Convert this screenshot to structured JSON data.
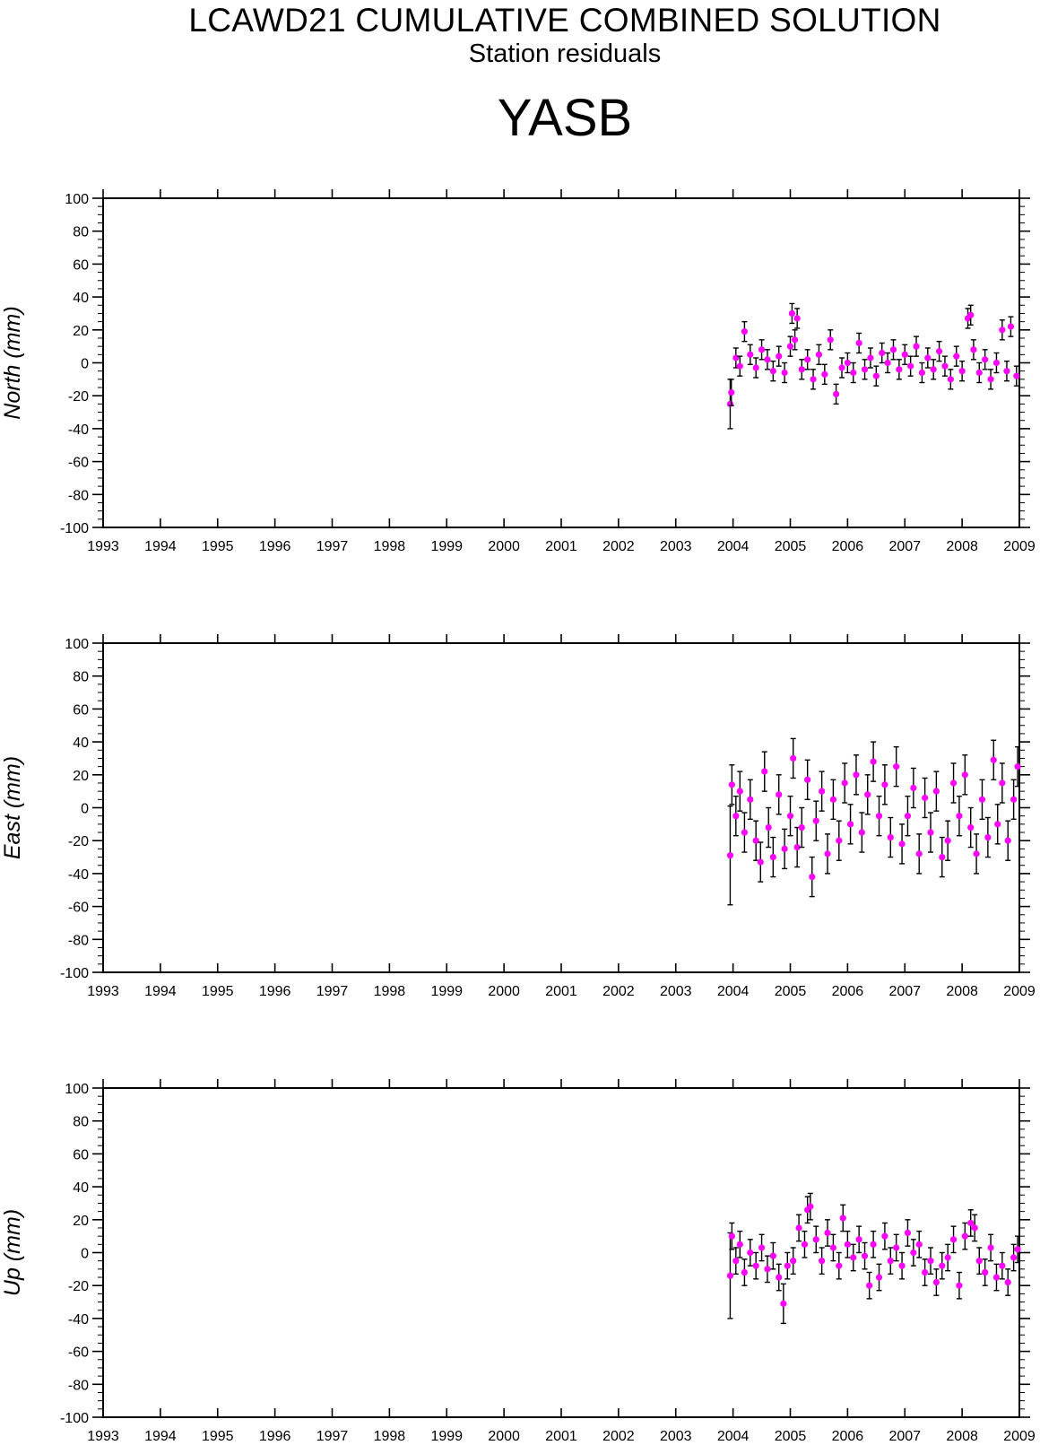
{
  "header": {
    "title": "LCAWD21 CUMULATIVE COMBINED SOLUTION",
    "subtitle": "Station residuals",
    "station": "YASB"
  },
  "colors": {
    "point": "#ff00ff",
    "errorbar": "#000000",
    "axis": "#000000"
  },
  "chart_data": [
    {
      "type": "scatter",
      "ylabel": "North (mm)",
      "xlim": [
        1993,
        2009
      ],
      "ylim": [
        -100,
        100
      ],
      "x_ticks": [
        "1993",
        "1994",
        "1995",
        "1996",
        "1997",
        "1998",
        "1999",
        "2000",
        "2001",
        "2002",
        "2003",
        "2004",
        "2005",
        "2006",
        "2007",
        "2008",
        "2009"
      ],
      "y_ticks": [
        "-100",
        "-80",
        "-60",
        "-40",
        "-20",
        "0",
        "20",
        "40",
        "60",
        "80",
        "100"
      ],
      "series": [
        {
          "x": [
            2003.95,
            2003.97,
            2004.05,
            2004.12,
            2004.2,
            2004.3,
            2004.4,
            2004.5,
            2004.6,
            2004.7,
            2004.8,
            2004.9,
            2005.0,
            2005.03,
            2005.08,
            2005.12,
            2005.2,
            2005.3,
            2005.4,
            2005.5,
            2005.6,
            2005.7,
            2005.8,
            2005.9,
            2006.0,
            2006.1,
            2006.2,
            2006.3,
            2006.4,
            2006.5,
            2006.6,
            2006.7,
            2006.8,
            2006.9,
            2007.0,
            2007.1,
            2007.2,
            2007.3,
            2007.4,
            2007.5,
            2007.6,
            2007.7,
            2007.8,
            2007.9,
            2008.0,
            2008.1,
            2008.15,
            2008.2,
            2008.3,
            2008.4,
            2008.5,
            2008.6,
            2008.7,
            2008.78,
            2008.85,
            2008.95
          ],
          "y": [
            -25,
            -18,
            3,
            -2,
            19,
            5,
            -3,
            8,
            2,
            -5,
            4,
            -6,
            10,
            30,
            14,
            27,
            -4,
            2,
            -10,
            5,
            -7,
            14,
            -19,
            -3,
            0,
            -6,
            12,
            -4,
            3,
            -8,
            6,
            0,
            8,
            -4,
            5,
            -2,
            10,
            -6,
            3,
            -4,
            7,
            -2,
            -10,
            4,
            -5,
            27,
            29,
            8,
            -6,
            2,
            -10,
            0,
            20,
            -5,
            22,
            -8
          ],
          "err": [
            15,
            8,
            6,
            6,
            6,
            6,
            6,
            6,
            6,
            6,
            6,
            6,
            6,
            6,
            6,
            6,
            6,
            6,
            6,
            6,
            6,
            6,
            6,
            6,
            6,
            6,
            6,
            6,
            6,
            6,
            6,
            6,
            6,
            6,
            6,
            6,
            6,
            6,
            6,
            6,
            6,
            6,
            6,
            6,
            6,
            6,
            6,
            6,
            6,
            6,
            6,
            6,
            6,
            6,
            6,
            6
          ]
        }
      ]
    },
    {
      "type": "scatter",
      "ylabel": "East (mm)",
      "xlim": [
        1993,
        2009
      ],
      "ylim": [
        -100,
        100
      ],
      "x_ticks": [
        "1993",
        "1994",
        "1995",
        "1996",
        "1997",
        "1998",
        "1999",
        "2000",
        "2001",
        "2002",
        "2003",
        "2004",
        "2005",
        "2006",
        "2007",
        "2008",
        "2009"
      ],
      "y_ticks": [
        "-100",
        "-80",
        "-60",
        "-40",
        "-20",
        "0",
        "20",
        "40",
        "60",
        "80",
        "100"
      ],
      "series": [
        {
          "x": [
            2003.95,
            2003.98,
            2004.05,
            2004.12,
            2004.2,
            2004.3,
            2004.4,
            2004.48,
            2004.55,
            2004.62,
            2004.7,
            2004.8,
            2004.9,
            2005.0,
            2005.05,
            2005.12,
            2005.2,
            2005.3,
            2005.38,
            2005.45,
            2005.55,
            2005.65,
            2005.75,
            2005.85,
            2005.95,
            2006.05,
            2006.15,
            2006.25,
            2006.35,
            2006.45,
            2006.55,
            2006.65,
            2006.75,
            2006.85,
            2006.95,
            2007.05,
            2007.15,
            2007.25,
            2007.35,
            2007.45,
            2007.55,
            2007.65,
            2007.75,
            2007.85,
            2007.95,
            2008.05,
            2008.15,
            2008.25,
            2008.35,
            2008.45,
            2008.55,
            2008.62,
            2008.7,
            2008.8,
            2008.9,
            2008.97
          ],
          "y": [
            -29,
            14,
            -5,
            10,
            -15,
            5,
            -20,
            -33,
            22,
            -12,
            -30,
            8,
            -25,
            -5,
            30,
            -24,
            -12,
            17,
            -42,
            -8,
            10,
            -28,
            5,
            -20,
            15,
            -10,
            20,
            -15,
            8,
            28,
            -5,
            14,
            -18,
            25,
            -22,
            -5,
            12,
            -28,
            6,
            -15,
            10,
            -30,
            -20,
            15,
            -5,
            20,
            -12,
            -28,
            5,
            -18,
            29,
            -10,
            15,
            -20,
            5,
            25
          ],
          "err": [
            30,
            12,
            12,
            12,
            12,
            12,
            12,
            12,
            12,
            12,
            12,
            12,
            12,
            12,
            12,
            12,
            12,
            12,
            12,
            12,
            12,
            12,
            12,
            12,
            12,
            12,
            12,
            12,
            12,
            12,
            12,
            12,
            12,
            12,
            12,
            12,
            12,
            12,
            12,
            12,
            12,
            12,
            12,
            12,
            12,
            12,
            12,
            12,
            12,
            12,
            12,
            12,
            12,
            12,
            12,
            12
          ]
        }
      ]
    },
    {
      "type": "scatter",
      "ylabel": "Up (mm)",
      "xlim": [
        1993,
        2009
      ],
      "ylim": [
        -100,
        100
      ],
      "x_ticks": [
        "1993",
        "1994",
        "1995",
        "1996",
        "1997",
        "1998",
        "1999",
        "2000",
        "2001",
        "2002",
        "2003",
        "2004",
        "2005",
        "2006",
        "2007",
        "2008",
        "2009"
      ],
      "y_ticks": [
        "-100",
        "-80",
        "-60",
        "-40",
        "-20",
        "0",
        "20",
        "40",
        "60",
        "80",
        "100"
      ],
      "series": [
        {
          "x": [
            2003.95,
            2003.98,
            2004.05,
            2004.12,
            2004.2,
            2004.3,
            2004.4,
            2004.5,
            2004.6,
            2004.7,
            2004.8,
            2004.88,
            2004.95,
            2005.05,
            2005.15,
            2005.25,
            2005.3,
            2005.35,
            2005.45,
            2005.55,
            2005.65,
            2005.75,
            2005.85,
            2005.92,
            2006.0,
            2006.1,
            2006.2,
            2006.3,
            2006.38,
            2006.45,
            2006.55,
            2006.65,
            2006.75,
            2006.85,
            2006.95,
            2007.05,
            2007.15,
            2007.25,
            2007.35,
            2007.45,
            2007.55,
            2007.65,
            2007.75,
            2007.85,
            2007.95,
            2008.05,
            2008.15,
            2008.22,
            2008.3,
            2008.4,
            2008.5,
            2008.6,
            2008.7,
            2008.8,
            2008.9,
            2008.97
          ],
          "y": [
            -14,
            10,
            -5,
            5,
            -12,
            0,
            -8,
            3,
            -10,
            -2,
            -15,
            -31,
            -8,
            -5,
            15,
            5,
            26,
            28,
            8,
            -5,
            12,
            3,
            -8,
            21,
            5,
            -3,
            8,
            -2,
            -20,
            5,
            -15,
            10,
            -5,
            3,
            -8,
            12,
            0,
            5,
            -12,
            -5,
            -18,
            -8,
            -3,
            8,
            -20,
            10,
            18,
            15,
            -5,
            -12,
            3,
            -15,
            -8,
            -18,
            -3,
            2
          ],
          "err": [
            26,
            8,
            8,
            8,
            8,
            8,
            8,
            8,
            8,
            8,
            8,
            12,
            8,
            8,
            8,
            8,
            8,
            8,
            8,
            8,
            8,
            8,
            8,
            8,
            8,
            8,
            8,
            8,
            8,
            8,
            8,
            8,
            8,
            8,
            8,
            8,
            8,
            8,
            8,
            8,
            8,
            8,
            8,
            8,
            8,
            8,
            8,
            8,
            8,
            8,
            8,
            8,
            8,
            8,
            8,
            8
          ]
        }
      ]
    }
  ]
}
